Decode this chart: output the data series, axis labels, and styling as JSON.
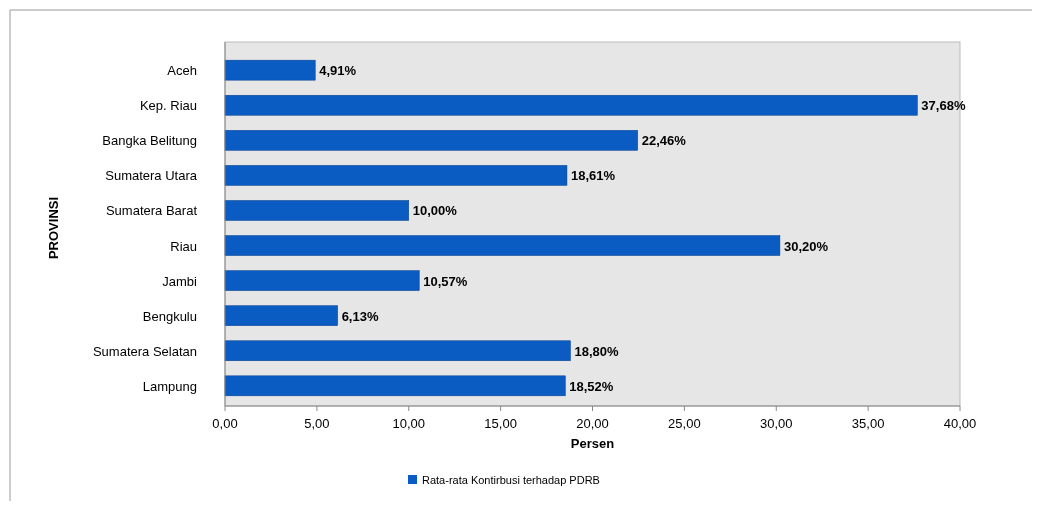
{
  "chart_data": {
    "type": "bar",
    "orientation": "horizontal",
    "xlabel": "Persen",
    "ylabel": "PROVINSI",
    "categories": [
      "Aceh",
      "Kep. Riau",
      "Bangka Belitung",
      "Sumatera Utara",
      "Sumatera Barat",
      "Riau",
      "Jambi",
      "Bengkulu",
      "Sumatera Selatan",
      "Lampung"
    ],
    "series": [
      {
        "name": "Rata-rata Kontirbusi terhadap PDRB",
        "color": "#0a5cc2",
        "values": [
          4.91,
          37.68,
          22.46,
          18.61,
          10.0,
          30.2,
          10.57,
          6.13,
          18.8,
          18.52
        ],
        "value_labels": [
          "4,91%",
          "37,68%",
          "22,46%",
          "18,61%",
          "10,00%",
          "30,20%",
          "10,57%",
          "6,13%",
          "18,80%",
          "18,52%"
        ]
      }
    ],
    "xlim": [
      0,
      40
    ],
    "xticks": [
      {
        "value": 0,
        "label": "0,00"
      },
      {
        "value": 5,
        "label": "5,00"
      },
      {
        "value": 10,
        "label": "10,00"
      },
      {
        "value": 15,
        "label": "15,00"
      },
      {
        "value": 20,
        "label": "20,00"
      },
      {
        "value": 25,
        "label": "25,00"
      },
      {
        "value": 30,
        "label": "30,00"
      },
      {
        "value": 35,
        "label": "35,00"
      },
      {
        "value": 40,
        "label": "40,00"
      }
    ],
    "grid": false,
    "legend": "bottom"
  }
}
